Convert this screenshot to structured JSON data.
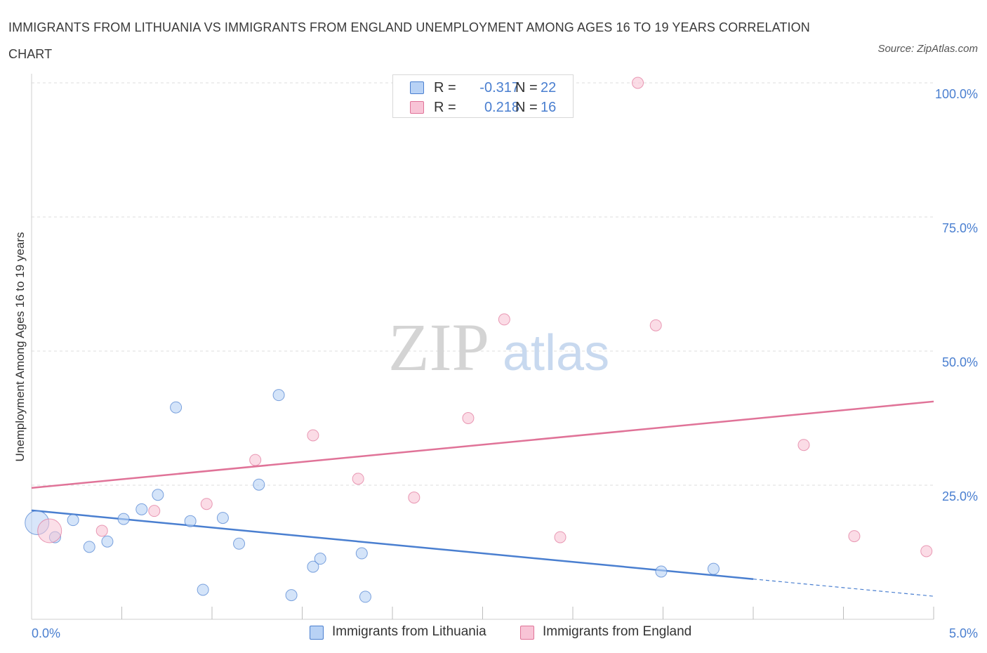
{
  "title": "IMMIGRANTS FROM LITHUANIA VS IMMIGRANTS FROM ENGLAND UNEMPLOYMENT AMONG AGES 16 TO 19 YEARS CORRELATION CHART",
  "source": "Source: ZipAtlas.com",
  "watermark": {
    "zip": "ZIP",
    "atlas": "atlas"
  },
  "legend": {
    "r_label": "R =",
    "n_label": "N =",
    "rows": [
      {
        "r": "-0.317",
        "n": "22"
      },
      {
        "r": "0.218",
        "n": "16"
      }
    ]
  },
  "chart_data": {
    "type": "scatter",
    "title": "IMMIGRANTS FROM LITHUANIA VS IMMIGRANTS FROM ENGLAND UNEMPLOYMENT AMONG AGES 16 TO 19 YEARS CORRELATION CHART",
    "xlabel": "",
    "ylabel": "Unemployment Among Ages 16 to 19 years",
    "xlim": [
      0,
      5
    ],
    "ylim": [
      0,
      100
    ],
    "x_tick_labels": [
      "0.0%",
      "5.0%"
    ],
    "y_ticks": [
      {
        "value": 25,
        "label": "25.0%"
      },
      {
        "value": 50,
        "label": "50.0%"
      },
      {
        "value": 75,
        "label": "75.0%"
      },
      {
        "value": 100,
        "label": "100.0%"
      }
    ],
    "grid": true,
    "legend_position": "bottom",
    "series": [
      {
        "name": "Immigrants from Lithuania",
        "color": "#4a7fd0",
        "fill": "#b8d2f5",
        "points": [
          {
            "x": 0.03,
            "y": 18.0,
            "big": true
          },
          {
            "x": 0.13,
            "y": 15.3
          },
          {
            "x": 0.23,
            "y": 18.5
          },
          {
            "x": 0.32,
            "y": 13.5
          },
          {
            "x": 0.42,
            "y": 14.5
          },
          {
            "x": 0.51,
            "y": 18.7
          },
          {
            "x": 0.61,
            "y": 20.5
          },
          {
            "x": 0.7,
            "y": 23.2
          },
          {
            "x": 0.8,
            "y": 39.5
          },
          {
            "x": 0.88,
            "y": 18.3
          },
          {
            "x": 0.95,
            "y": 5.5
          },
          {
            "x": 1.06,
            "y": 18.9
          },
          {
            "x": 1.15,
            "y": 14.1
          },
          {
            "x": 1.26,
            "y": 25.1
          },
          {
            "x": 1.37,
            "y": 41.8
          },
          {
            "x": 1.44,
            "y": 4.5
          },
          {
            "x": 1.56,
            "y": 9.8
          },
          {
            "x": 1.6,
            "y": 11.3
          },
          {
            "x": 1.83,
            "y": 12.3
          },
          {
            "x": 1.85,
            "y": 4.2
          },
          {
            "x": 3.49,
            "y": 8.9
          },
          {
            "x": 3.78,
            "y": 9.4
          }
        ],
        "trend": {
          "x0": 0,
          "y0": 20.3,
          "x1": 4.0,
          "y1": 7.5,
          "dash_to_x": 5.0,
          "dash_to_y": 4.3
        }
      },
      {
        "name": "Immigrants from England",
        "color": "#e07398",
        "fill": "#f8c4d6",
        "points": [
          {
            "x": 0.1,
            "y": 16.5,
            "big": true
          },
          {
            "x": 0.39,
            "y": 16.5
          },
          {
            "x": 0.68,
            "y": 20.2
          },
          {
            "x": 0.97,
            "y": 21.5
          },
          {
            "x": 1.24,
            "y": 29.7
          },
          {
            "x": 1.56,
            "y": 34.3
          },
          {
            "x": 1.81,
            "y": 26.2
          },
          {
            "x": 2.12,
            "y": 22.7
          },
          {
            "x": 2.42,
            "y": 37.5
          },
          {
            "x": 2.62,
            "y": 55.9
          },
          {
            "x": 2.93,
            "y": 15.3
          },
          {
            "x": 3.36,
            "y": 100.0
          },
          {
            "x": 3.46,
            "y": 54.8
          },
          {
            "x": 4.28,
            "y": 32.5
          },
          {
            "x": 4.56,
            "y": 15.5
          },
          {
            "x": 4.96,
            "y": 12.7
          }
        ],
        "trend": {
          "x0": 0,
          "y0": 24.5,
          "x1": 5.0,
          "y1": 40.6
        }
      }
    ]
  }
}
